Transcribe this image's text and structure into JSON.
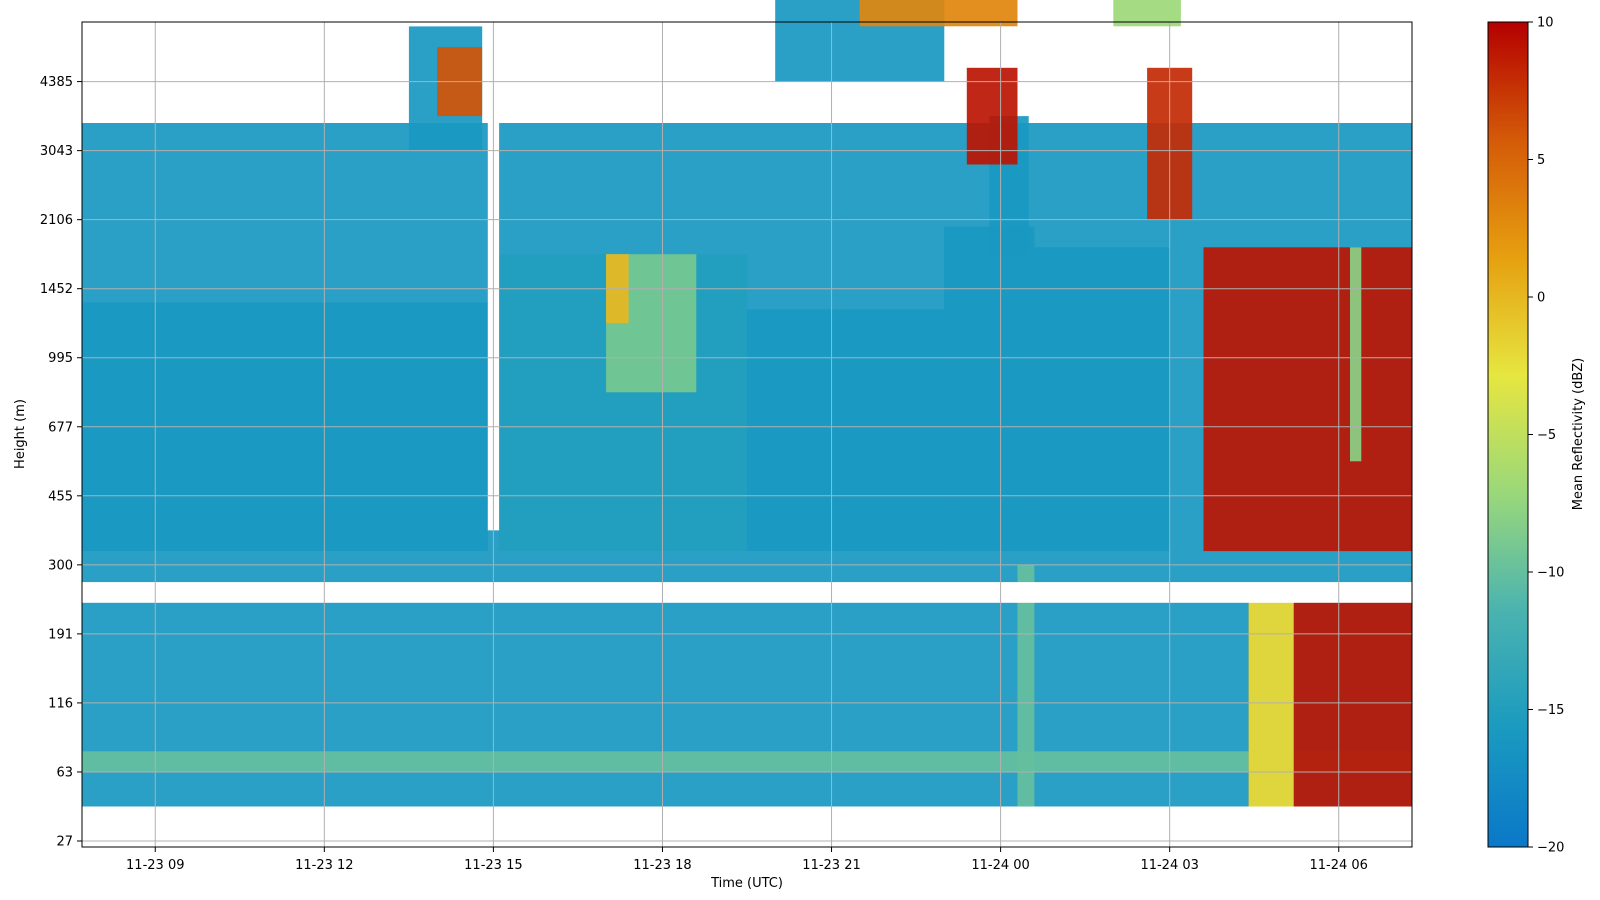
{
  "chart_data": {
    "type": "heatmap",
    "title": "",
    "xlabel": "Time (UTC)",
    "ylabel": "Height (m)",
    "colorbar_label": "Mean Reflectivity (dBZ)",
    "x_range_hours": [
      7.7,
      31.3
    ],
    "x_ticks": [
      {
        "hour": 9,
        "label": "11-23 09"
      },
      {
        "hour": 12,
        "label": "11-23 12"
      },
      {
        "hour": 15,
        "label": "11-23 15"
      },
      {
        "hour": 18,
        "label": "11-23 18"
      },
      {
        "hour": 21,
        "label": "11-23 21"
      },
      {
        "hour": 24,
        "label": "11-24 00"
      },
      {
        "hour": 27,
        "label": "11-24 03"
      },
      {
        "hour": 30,
        "label": "11-24 06"
      }
    ],
    "y_ticks": [
      "27",
      "63",
      "116",
      "191",
      "300",
      "455",
      "677",
      "995",
      "1452",
      "2106",
      "3043",
      "4385"
    ],
    "colorbar": {
      "range": [
        -20,
        10
      ],
      "ticks": [
        {
          "value": 10,
          "label": "10"
        },
        {
          "value": 5,
          "label": "5"
        },
        {
          "value": 0,
          "label": "0"
        },
        {
          "value": -5,
          "label": "−5"
        },
        {
          "value": -10,
          "label": "−10"
        },
        {
          "value": -15,
          "label": "−15"
        },
        {
          "value": -20,
          "label": "−20"
        }
      ],
      "colors": [
        "#0a78c8",
        "#1a9ac0",
        "#4ab3b0",
        "#9ad87a",
        "#e6e640",
        "#e6a010",
        "#d45a08",
        "#b40000"
      ]
    },
    "regions": [
      {
        "t0": 7.7,
        "t1": 15.1,
        "y0": 0.5,
        "y1": 10.4,
        "dbz": -16
      },
      {
        "t0": 15.1,
        "t1": 31.3,
        "y0": 0.5,
        "y1": 10.4,
        "dbz": -16
      },
      {
        "t0": 7.7,
        "t1": 14.9,
        "y0": 4.2,
        "y1": 7.8,
        "dbz": -16
      },
      {
        "t0": 15.1,
        "t1": 19.5,
        "y0": 4.2,
        "y1": 8.5,
        "dbz": -15
      },
      {
        "t0": 19.5,
        "t1": 23.0,
        "y0": 4.2,
        "y1": 7.7,
        "dbz": -16
      },
      {
        "t0": 23.0,
        "t1": 24.6,
        "y0": 4.2,
        "y1": 8.9,
        "dbz": -16
      },
      {
        "t0": 24.6,
        "t1": 27.0,
        "y0": 4.2,
        "y1": 8.6,
        "dbz": -16
      },
      {
        "t0": 7.7,
        "t1": 31.3,
        "y0": 1.0,
        "y1": 1.3,
        "dbz": -10
      },
      {
        "t0": 17.0,
        "t1": 18.6,
        "y0": 6.5,
        "y1": 8.5,
        "dbz": -9
      },
      {
        "t0": 17.0,
        "t1": 17.4,
        "y0": 7.5,
        "y1": 8.5,
        "dbz": 0
      },
      {
        "t0": 23.8,
        "t1": 24.5,
        "y0": 8.5,
        "y1": 10.5,
        "dbz": -16
      },
      {
        "t0": 24.3,
        "t1": 24.6,
        "y0": 0.5,
        "y1": 4.0,
        "dbz": -10
      },
      {
        "t0": 27.6,
        "t1": 31.3,
        "y0": 4.2,
        "y1": 8.6,
        "dbz": 9
      },
      {
        "t0": 28.4,
        "t1": 31.3,
        "y0": 0.5,
        "y1": 3.5,
        "dbz": 9
      },
      {
        "t0": 28.4,
        "t1": 29.2,
        "y0": 0.5,
        "y1": 3.5,
        "dbz": -3
      },
      {
        "t0": 30.2,
        "t1": 30.4,
        "y0": 5.5,
        "y1": 8.6,
        "dbz": -8
      },
      {
        "t0": 13.5,
        "t1": 14.8,
        "y0": 10.0,
        "y1": 11.8,
        "dbz": -16
      },
      {
        "t0": 14.0,
        "t1": 14.8,
        "y0": 10.5,
        "y1": 11.5,
        "dbz": 6
      },
      {
        "t0": 20.0,
        "t1": 23.0,
        "y0": 11.0,
        "y1": 12.6,
        "dbz": -16
      },
      {
        "t0": 21.5,
        "t1": 24.3,
        "y0": 11.8,
        "y1": 12.6,
        "dbz": 3
      },
      {
        "t0": 23.4,
        "t1": 24.3,
        "y0": 9.8,
        "y1": 11.2,
        "dbz": 9
      },
      {
        "t0": 26.6,
        "t1": 27.4,
        "y0": 9.0,
        "y1": 11.2,
        "dbz": 8
      },
      {
        "t0": 26.0,
        "t1": 27.2,
        "y0": 11.8,
        "y1": 12.6,
        "dbz": -7
      }
    ]
  }
}
